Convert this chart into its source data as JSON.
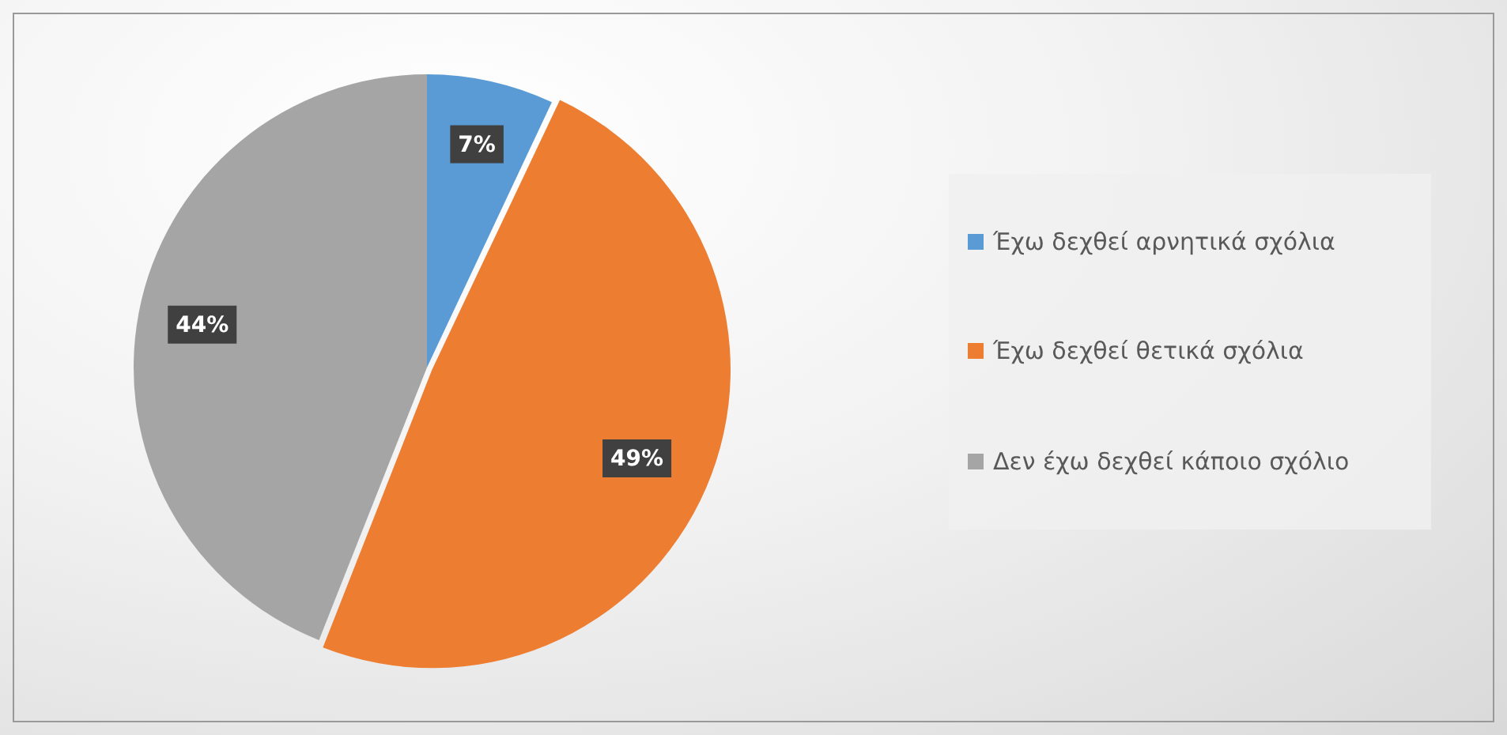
{
  "chart_data": {
    "type": "pie",
    "categories": [
      "Έχω δεχθεί αρνητικά σχόλια",
      "Έχω δεχθεί θετικά σχόλια",
      "Δεν έχω δεχθεί κάποιο σχόλιο"
    ],
    "values": [
      7,
      49,
      44
    ],
    "colors": [
      "#5b9bd5",
      "#ed7d31",
      "#a5a5a5"
    ],
    "value_labels": [
      "7%",
      "49%",
      "44%"
    ],
    "legend": "right"
  }
}
